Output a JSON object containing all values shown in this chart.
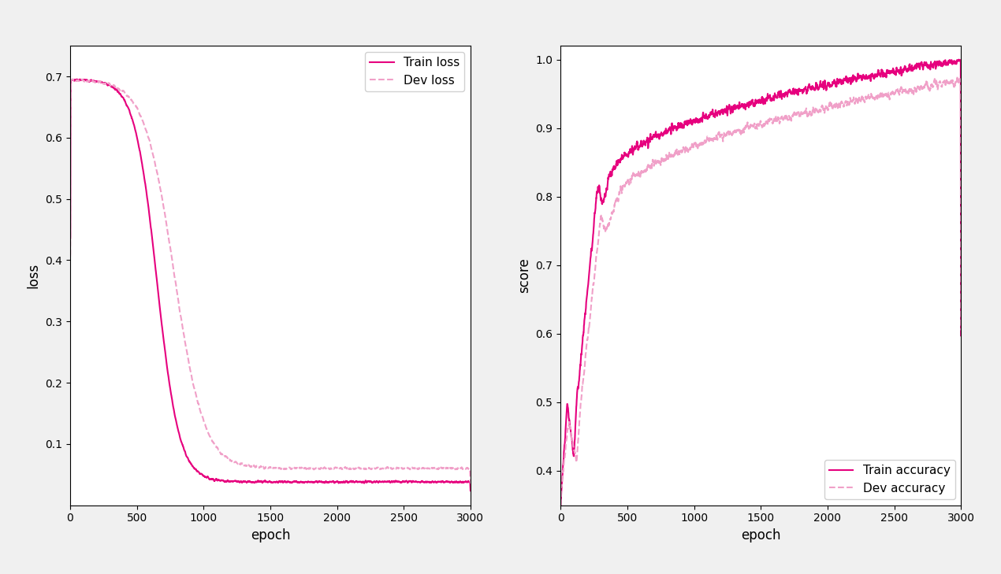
{
  "solid_color": "#e6007e",
  "dashed_color": "#f0a0c8",
  "xlabel": "epoch",
  "ylabel_left": "loss",
  "ylabel_right": "score",
  "legend_left": [
    "Train loss",
    "Dev loss"
  ],
  "legend_right": [
    "Train accuracy",
    "Dev accuracy"
  ],
  "xlim": [
    0,
    3000
  ],
  "ylim_loss": [
    0.0,
    0.75
  ],
  "ylim_acc": [
    0.35,
    1.02
  ],
  "n_epochs": 3000
}
